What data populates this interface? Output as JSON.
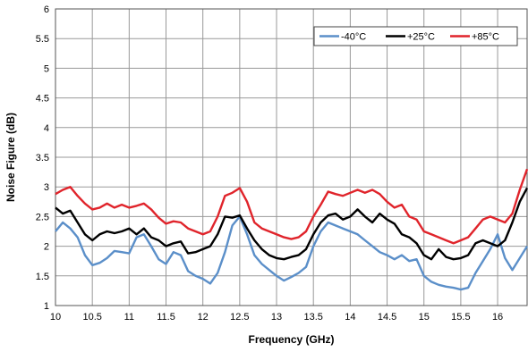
{
  "chart_data": {
    "type": "line",
    "xlabel": "Frequency (GHz)",
    "ylabel": "Noise Figure (dB)",
    "xlim": [
      10,
      16.4
    ],
    "ylim": [
      1,
      6
    ],
    "x_ticks": [
      "10",
      "10.5",
      "11",
      "11.5",
      "12",
      "12.5",
      "13",
      "13.5",
      "14",
      "14.5",
      "15",
      "15.5",
      "16"
    ],
    "x_tick_values": [
      10,
      10.5,
      11,
      11.5,
      12,
      12.5,
      13,
      13.5,
      14,
      14.5,
      15,
      15.5,
      16
    ],
    "y_ticks": [
      "1",
      "1.5",
      "2",
      "2.5",
      "3",
      "3.5",
      "4",
      "4.5",
      "5",
      "5.5",
      "6"
    ],
    "y_tick_values": [
      1,
      1.5,
      2,
      2.5,
      3,
      3.5,
      4,
      4.5,
      5,
      5.5,
      6
    ],
    "grid": true,
    "legend_position": "top-right",
    "series": [
      {
        "name": "-40°C",
        "color": "#5b8fc9",
        "points": [
          [
            10.0,
            2.25
          ],
          [
            10.1,
            2.4
          ],
          [
            10.2,
            2.3
          ],
          [
            10.3,
            2.15
          ],
          [
            10.4,
            1.85
          ],
          [
            10.5,
            1.68
          ],
          [
            10.6,
            1.72
          ],
          [
            10.7,
            1.8
          ],
          [
            10.8,
            1.92
          ],
          [
            10.9,
            1.9
          ],
          [
            11.0,
            1.88
          ],
          [
            11.1,
            2.15
          ],
          [
            11.2,
            2.2
          ],
          [
            11.3,
            2.0
          ],
          [
            11.4,
            1.78
          ],
          [
            11.5,
            1.7
          ],
          [
            11.6,
            1.9
          ],
          [
            11.7,
            1.85
          ],
          [
            11.8,
            1.58
          ],
          [
            11.9,
            1.5
          ],
          [
            12.0,
            1.45
          ],
          [
            12.1,
            1.37
          ],
          [
            12.2,
            1.55
          ],
          [
            12.3,
            1.9
          ],
          [
            12.4,
            2.35
          ],
          [
            12.5,
            2.5
          ],
          [
            12.6,
            2.2
          ],
          [
            12.7,
            1.85
          ],
          [
            12.8,
            1.7
          ],
          [
            12.9,
            1.6
          ],
          [
            13.0,
            1.5
          ],
          [
            13.1,
            1.42
          ],
          [
            13.2,
            1.48
          ],
          [
            13.3,
            1.55
          ],
          [
            13.4,
            1.65
          ],
          [
            13.5,
            2.0
          ],
          [
            13.6,
            2.25
          ],
          [
            13.7,
            2.4
          ],
          [
            13.8,
            2.35
          ],
          [
            13.9,
            2.3
          ],
          [
            14.0,
            2.25
          ],
          [
            14.1,
            2.2
          ],
          [
            14.2,
            2.1
          ],
          [
            14.3,
            2.0
          ],
          [
            14.4,
            1.9
          ],
          [
            14.5,
            1.85
          ],
          [
            14.6,
            1.78
          ],
          [
            14.7,
            1.85
          ],
          [
            14.8,
            1.75
          ],
          [
            14.9,
            1.78
          ],
          [
            15.0,
            1.5
          ],
          [
            15.1,
            1.4
          ],
          [
            15.2,
            1.35
          ],
          [
            15.3,
            1.32
          ],
          [
            15.4,
            1.3
          ],
          [
            15.5,
            1.27
          ],
          [
            15.6,
            1.3
          ],
          [
            15.7,
            1.55
          ],
          [
            15.8,
            1.75
          ],
          [
            15.9,
            1.95
          ],
          [
            16.0,
            2.2
          ],
          [
            16.1,
            1.8
          ],
          [
            16.2,
            1.6
          ],
          [
            16.3,
            1.8
          ],
          [
            16.4,
            2.0
          ]
        ]
      },
      {
        "name": "+25°C",
        "color": "#000000",
        "points": [
          [
            10.0,
            2.65
          ],
          [
            10.1,
            2.55
          ],
          [
            10.2,
            2.6
          ],
          [
            10.3,
            2.4
          ],
          [
            10.4,
            2.2
          ],
          [
            10.5,
            2.1
          ],
          [
            10.6,
            2.2
          ],
          [
            10.7,
            2.25
          ],
          [
            10.8,
            2.22
          ],
          [
            10.9,
            2.25
          ],
          [
            11.0,
            2.3
          ],
          [
            11.1,
            2.2
          ],
          [
            11.2,
            2.3
          ],
          [
            11.3,
            2.15
          ],
          [
            11.4,
            2.1
          ],
          [
            11.5,
            2.0
          ],
          [
            11.6,
            2.05
          ],
          [
            11.7,
            2.08
          ],
          [
            11.8,
            1.88
          ],
          [
            11.9,
            1.9
          ],
          [
            12.0,
            1.95
          ],
          [
            12.1,
            2.0
          ],
          [
            12.2,
            2.2
          ],
          [
            12.3,
            2.5
          ],
          [
            12.4,
            2.48
          ],
          [
            12.5,
            2.52
          ],
          [
            12.6,
            2.3
          ],
          [
            12.7,
            2.1
          ],
          [
            12.8,
            1.95
          ],
          [
            12.9,
            1.85
          ],
          [
            13.0,
            1.8
          ],
          [
            13.1,
            1.78
          ],
          [
            13.2,
            1.82
          ],
          [
            13.3,
            1.85
          ],
          [
            13.4,
            1.95
          ],
          [
            13.5,
            2.2
          ],
          [
            13.6,
            2.4
          ],
          [
            13.7,
            2.52
          ],
          [
            13.8,
            2.55
          ],
          [
            13.9,
            2.45
          ],
          [
            14.0,
            2.5
          ],
          [
            14.1,
            2.62
          ],
          [
            14.2,
            2.5
          ],
          [
            14.3,
            2.4
          ],
          [
            14.4,
            2.55
          ],
          [
            14.5,
            2.45
          ],
          [
            14.6,
            2.38
          ],
          [
            14.7,
            2.2
          ],
          [
            14.8,
            2.15
          ],
          [
            14.9,
            2.05
          ],
          [
            15.0,
            1.85
          ],
          [
            15.1,
            1.78
          ],
          [
            15.2,
            1.95
          ],
          [
            15.3,
            1.82
          ],
          [
            15.4,
            1.78
          ],
          [
            15.5,
            1.8
          ],
          [
            15.6,
            1.85
          ],
          [
            15.7,
            2.05
          ],
          [
            15.8,
            2.1
          ],
          [
            15.9,
            2.05
          ],
          [
            16.0,
            2.0
          ],
          [
            16.1,
            2.1
          ],
          [
            16.2,
            2.4
          ],
          [
            16.3,
            2.75
          ],
          [
            16.4,
            2.98
          ]
        ]
      },
      {
        "name": "+85°C",
        "color": "#e0242b",
        "points": [
          [
            10.0,
            2.88
          ],
          [
            10.1,
            2.95
          ],
          [
            10.2,
            3.0
          ],
          [
            10.3,
            2.85
          ],
          [
            10.4,
            2.72
          ],
          [
            10.5,
            2.62
          ],
          [
            10.6,
            2.65
          ],
          [
            10.7,
            2.72
          ],
          [
            10.8,
            2.65
          ],
          [
            10.9,
            2.7
          ],
          [
            11.0,
            2.65
          ],
          [
            11.1,
            2.68
          ],
          [
            11.2,
            2.72
          ],
          [
            11.3,
            2.62
          ],
          [
            11.4,
            2.48
          ],
          [
            11.5,
            2.38
          ],
          [
            11.6,
            2.42
          ],
          [
            11.7,
            2.4
          ],
          [
            11.8,
            2.3
          ],
          [
            11.9,
            2.25
          ],
          [
            12.0,
            2.2
          ],
          [
            12.1,
            2.25
          ],
          [
            12.2,
            2.5
          ],
          [
            12.3,
            2.85
          ],
          [
            12.4,
            2.9
          ],
          [
            12.5,
            2.98
          ],
          [
            12.6,
            2.75
          ],
          [
            12.7,
            2.4
          ],
          [
            12.8,
            2.3
          ],
          [
            12.9,
            2.25
          ],
          [
            13.0,
            2.2
          ],
          [
            13.1,
            2.15
          ],
          [
            13.2,
            2.12
          ],
          [
            13.3,
            2.15
          ],
          [
            13.4,
            2.25
          ],
          [
            13.5,
            2.5
          ],
          [
            13.6,
            2.7
          ],
          [
            13.7,
            2.92
          ],
          [
            13.8,
            2.88
          ],
          [
            13.9,
            2.85
          ],
          [
            14.0,
            2.9
          ],
          [
            14.1,
            2.95
          ],
          [
            14.2,
            2.9
          ],
          [
            14.3,
            2.95
          ],
          [
            14.4,
            2.88
          ],
          [
            14.5,
            2.75
          ],
          [
            14.6,
            2.65
          ],
          [
            14.7,
            2.7
          ],
          [
            14.8,
            2.5
          ],
          [
            14.9,
            2.45
          ],
          [
            15.0,
            2.25
          ],
          [
            15.1,
            2.2
          ],
          [
            15.2,
            2.15
          ],
          [
            15.3,
            2.1
          ],
          [
            15.4,
            2.05
          ],
          [
            15.5,
            2.1
          ],
          [
            15.6,
            2.15
          ],
          [
            15.7,
            2.3
          ],
          [
            15.8,
            2.45
          ],
          [
            15.9,
            2.5
          ],
          [
            16.0,
            2.45
          ],
          [
            16.1,
            2.4
          ],
          [
            16.2,
            2.55
          ],
          [
            16.3,
            2.95
          ],
          [
            16.4,
            3.3
          ]
        ]
      }
    ]
  }
}
